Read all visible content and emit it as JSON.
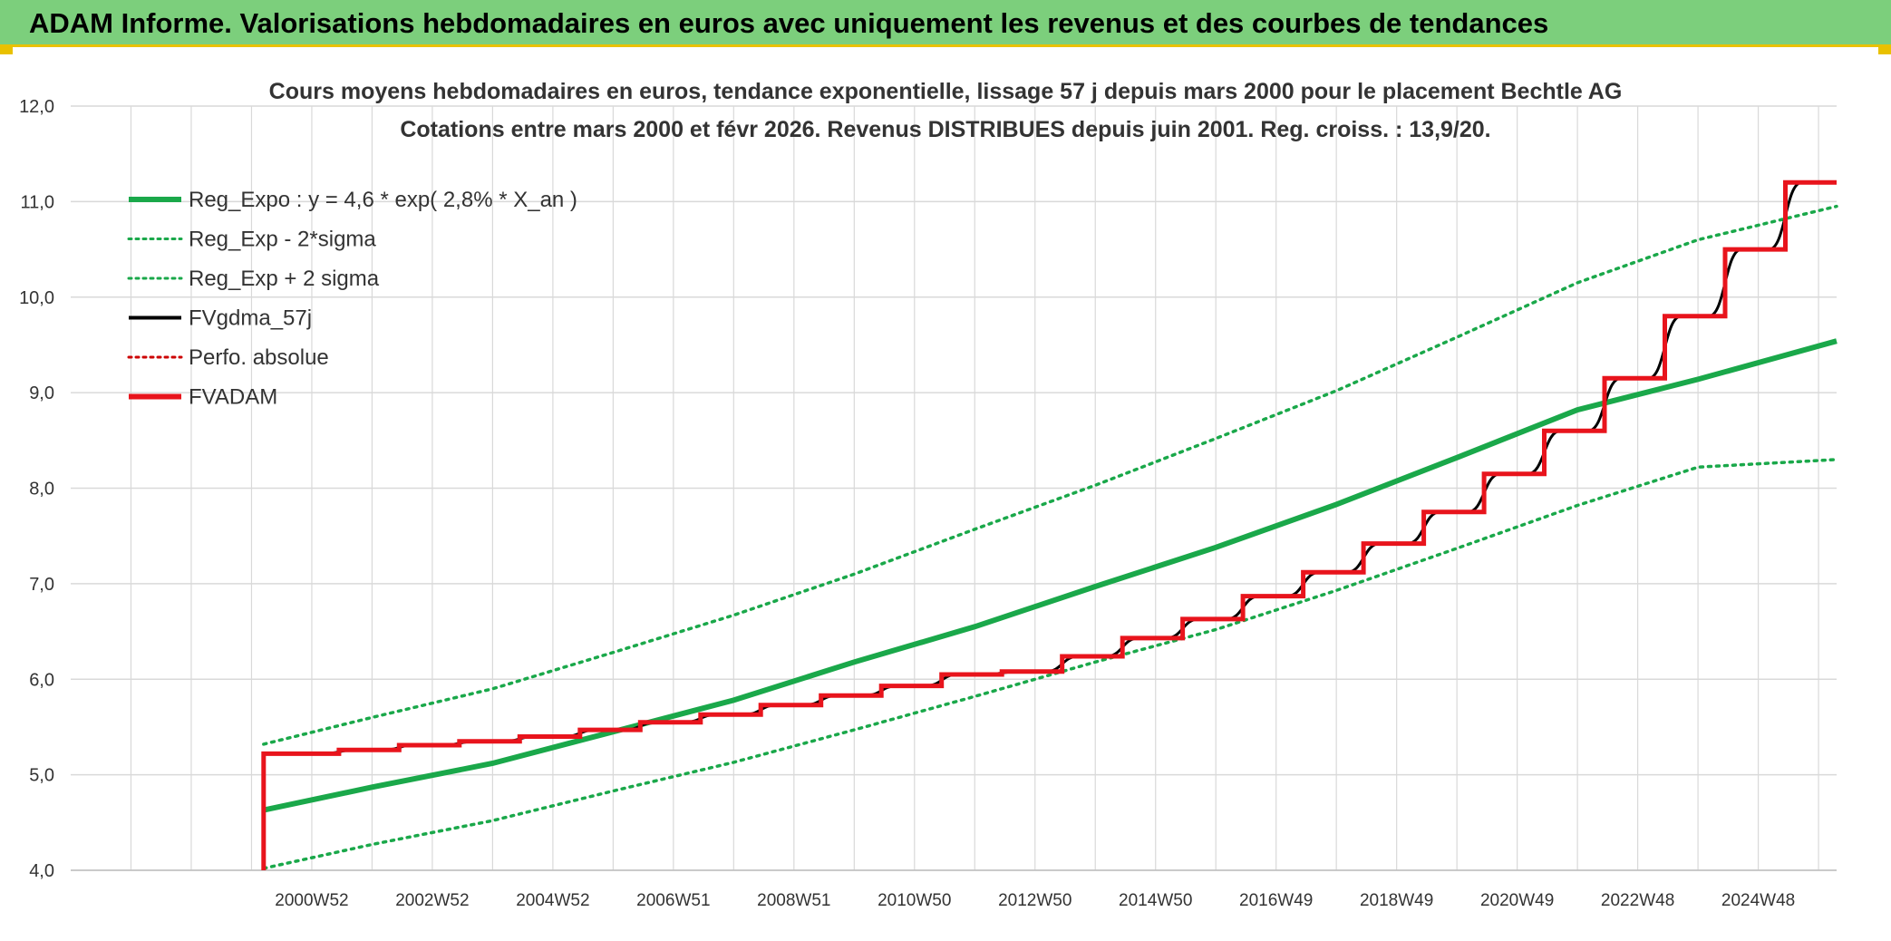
{
  "banner": {
    "title": "ADAM Informe. Valorisations hebdomadaires en euros avec uniquement les revenus et des courbes de tendances"
  },
  "colors": {
    "banner_bg": "#7ccf7c",
    "banner_border": "#e9c100",
    "reg_expo": "#1aa84a",
    "sigma": "#1aa84a",
    "fvgdma": "#000000",
    "perfo": "#cc0000",
    "fvadam": "#e8141c",
    "grid": "#d9d9d9"
  },
  "chart_data": {
    "type": "line",
    "title": "Cours moyens hebdomadaires en euros, tendance exponentielle, lissage 57 j depuis mars 2000 pour le placement Bechtle AG",
    "subtitle": "Cotations entre mars 2000 et févr 2026. Revenus DISTRIBUES depuis juin 2001. Reg. croiss. : 13,9/20.",
    "xlabel": "",
    "ylabel": "",
    "ylim": [
      4.0,
      12.0
    ],
    "y_ticks": [
      "4,0",
      "5,0",
      "6,0",
      "7,0",
      "8,0",
      "9,0",
      "10,0",
      "11,0",
      "12,0"
    ],
    "x_ticks": [
      "2000W52",
      "2002W52",
      "2004W52",
      "2006W51",
      "2008W51",
      "2010W50",
      "2012W50",
      "2014W50",
      "2016W49",
      "2018W49",
      "2020W49",
      "2022W48",
      "2024W48"
    ],
    "x_range_years": [
      1997.0,
      2026.3
    ],
    "grid": true,
    "legend_position": "top-left",
    "legend": [
      {
        "label": "Reg_Expo : y = 4,6 * exp( 2,8% *  X_an )",
        "style": "solid-thick",
        "color": "#1aa84a"
      },
      {
        "label": "Reg_Exp - 2*sigma",
        "style": "dotted",
        "color": "#1aa84a"
      },
      {
        "label": "Reg_Exp + 2 sigma",
        "style": "dotted",
        "color": "#1aa84a"
      },
      {
        "label": "FVgdma_57j",
        "style": "solid",
        "color": "#000000"
      },
      {
        "label": "Perfo. absolue",
        "style": "dotted",
        "color": "#cc0000"
      },
      {
        "label": "FVADAM",
        "style": "solid-thick",
        "color": "#e8141c"
      }
    ],
    "series": [
      {
        "name": "Reg_Expo : y = 4,6 * exp( 2,8% *  X_an )",
        "x": [
          2000.2,
          2002,
          2004,
          2006,
          2008,
          2010,
          2012,
          2014,
          2016,
          2018,
          2020,
          2022,
          2024,
          2026.3
        ],
        "values": [
          4.63,
          4.87,
          5.12,
          5.45,
          5.78,
          6.18,
          6.55,
          6.97,
          7.38,
          7.83,
          8.32,
          8.82,
          9.14,
          9.54
        ]
      },
      {
        "name": "Reg_Exp - 2*sigma",
        "x": [
          2000.2,
          2002,
          2004,
          2006,
          2008,
          2010,
          2012,
          2014,
          2016,
          2018,
          2020,
          2022,
          2024,
          2026.3
        ],
        "values": [
          4.02,
          4.27,
          4.52,
          4.83,
          5.13,
          5.47,
          5.82,
          6.18,
          6.52,
          6.93,
          7.37,
          7.82,
          8.22,
          8.3
        ]
      },
      {
        "name": "Reg_Exp + 2 sigma",
        "x": [
          2000.2,
          2002,
          2004,
          2006,
          2008,
          2010,
          2012,
          2014,
          2016,
          2018,
          2020,
          2022,
          2024,
          2026.3
        ],
        "values": [
          5.32,
          5.6,
          5.9,
          6.28,
          6.67,
          7.1,
          7.57,
          8.03,
          8.52,
          9.02,
          9.58,
          10.15,
          10.6,
          10.95
        ]
      },
      {
        "name": "FVADAM",
        "x": [
          2000.2,
          2000.2,
          2001.45,
          2001.45,
          2002.45,
          2002.45,
          2003.45,
          2003.45,
          2004.45,
          2004.45,
          2005.45,
          2005.45,
          2006.45,
          2006.45,
          2007.45,
          2007.45,
          2008.45,
          2008.45,
          2009.45,
          2009.45,
          2010.45,
          2010.45,
          2011.45,
          2011.45,
          2012.45,
          2012.45,
          2013.45,
          2013.45,
          2014.45,
          2014.45,
          2015.45,
          2015.45,
          2016.45,
          2016.45,
          2017.45,
          2017.45,
          2018.45,
          2018.45,
          2019.45,
          2019.45,
          2020.45,
          2020.45,
          2021.45,
          2021.45,
          2022.45,
          2022.45,
          2023.45,
          2023.45,
          2024.45,
          2024.45,
          2025.45,
          2025.45,
          2026.3
        ],
        "values": [
          4.0,
          5.22,
          5.22,
          5.26,
          5.26,
          5.31,
          5.31,
          5.35,
          5.35,
          5.4,
          5.4,
          5.47,
          5.47,
          5.55,
          5.55,
          5.63,
          5.63,
          5.73,
          5.73,
          5.83,
          5.83,
          5.93,
          5.93,
          6.05,
          6.05,
          6.08,
          6.08,
          6.24,
          6.24,
          6.43,
          6.43,
          6.63,
          6.63,
          6.87,
          6.87,
          7.12,
          7.12,
          7.42,
          7.42,
          7.75,
          7.75,
          8.15,
          8.15,
          8.6,
          8.6,
          9.15,
          9.15,
          9.8,
          9.8,
          10.5,
          10.5,
          11.2,
          11.2
        ]
      }
    ]
  }
}
